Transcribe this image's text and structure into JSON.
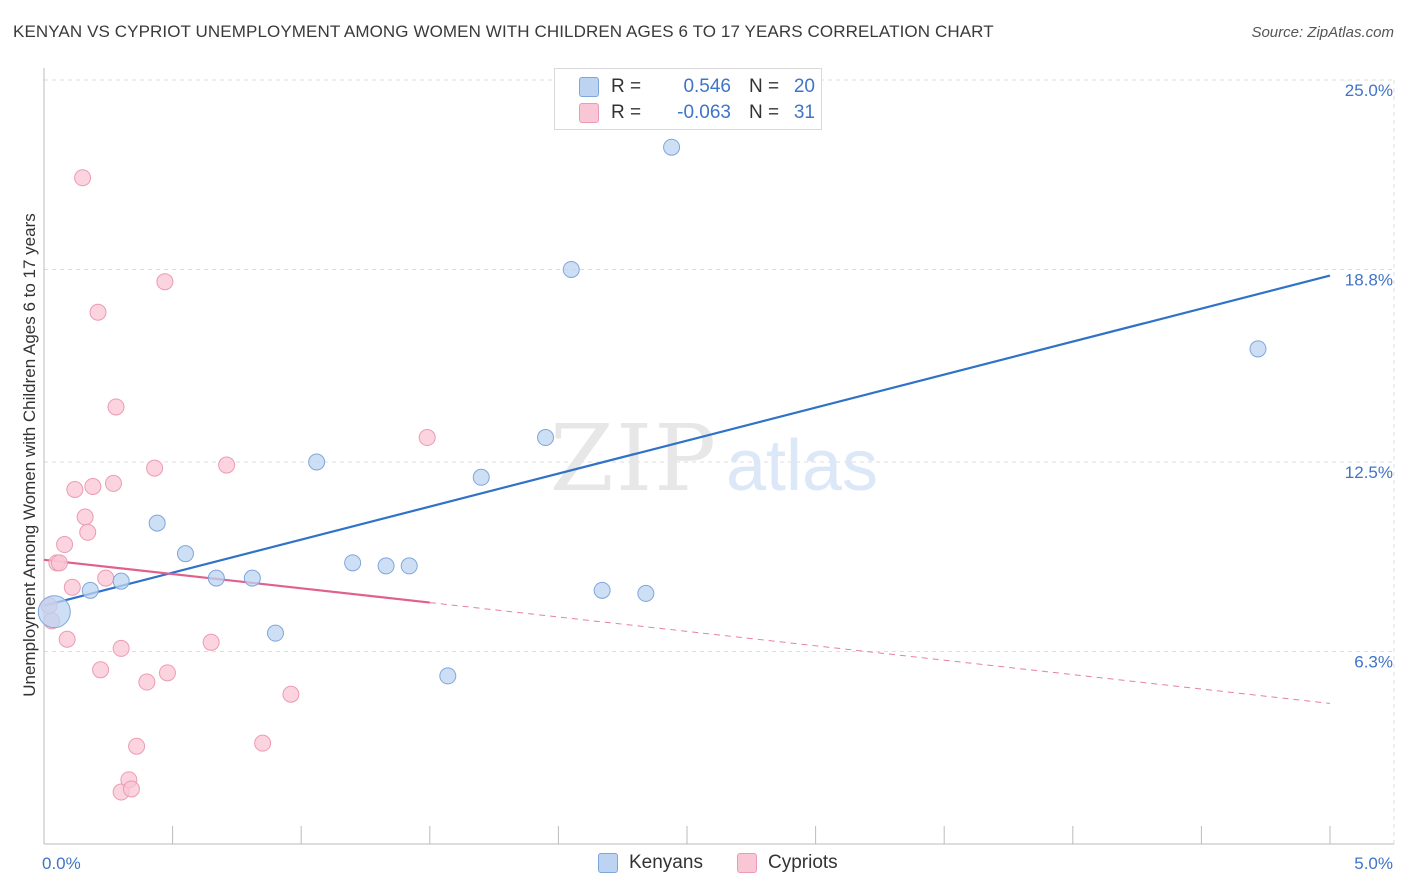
{
  "title": "KENYAN VS CYPRIOT UNEMPLOYMENT AMONG WOMEN WITH CHILDREN AGES 6 TO 17 YEARS CORRELATION CHART",
  "source": "Source: ZipAtlas.com",
  "watermark": {
    "zip": "ZIP",
    "atlas": "atlas"
  },
  "colors": {
    "kenyans_fill": "#bcd4f2",
    "kenyans_stroke": "#7ea6dc",
    "kenyans_line": "#2f72c8",
    "cypriots_fill": "#f9c6d5",
    "cypriots_stroke": "#ec9bb4",
    "cypriots_line": "#e0608f",
    "axis_label": "#3f74c8",
    "grid": "#dddddd"
  },
  "legend": {
    "rows": [
      {
        "r_label": "R =",
        "r_value": "0.546",
        "n_label": "N =",
        "n_value": "20"
      },
      {
        "r_label": "R =",
        "r_value": "-0.063",
        "n_label": "N =",
        "n_value": "31"
      }
    ]
  },
  "chart_data": {
    "type": "scatter",
    "title": "KENYAN VS CYPRIOT UNEMPLOYMENT AMONG WOMEN WITH CHILDREN AGES 6 TO 17 YEARS CORRELATION CHART",
    "xlabel": "",
    "ylabel": "Unemployment Among Women with Children Ages 6 to 17 years",
    "xlim": [
      0,
      5
    ],
    "ylim": [
      0,
      25
    ],
    "x_tick_labels": [
      "0.0%",
      "5.0%"
    ],
    "y_ticks": [
      6.3,
      12.5,
      18.8,
      25.0
    ],
    "y_tick_labels": [
      "6.3%",
      "12.5%",
      "18.8%",
      "25.0%"
    ],
    "grid": true,
    "legend_position": "bottom",
    "series": [
      {
        "name": "Kenyans",
        "points": [
          {
            "x": 0.04,
            "y": 7.6,
            "big": true
          },
          {
            "x": 0.18,
            "y": 8.3
          },
          {
            "x": 0.3,
            "y": 8.6
          },
          {
            "x": 0.44,
            "y": 10.5
          },
          {
            "x": 0.55,
            "y": 9.5
          },
          {
            "x": 0.67,
            "y": 8.7
          },
          {
            "x": 0.81,
            "y": 8.7
          },
          {
            "x": 0.9,
            "y": 6.9
          },
          {
            "x": 1.06,
            "y": 12.5
          },
          {
            "x": 1.2,
            "y": 9.2
          },
          {
            "x": 1.33,
            "y": 9.1
          },
          {
            "x": 1.42,
            "y": 9.1
          },
          {
            "x": 1.57,
            "y": 5.5
          },
          {
            "x": 1.7,
            "y": 12.0
          },
          {
            "x": 1.95,
            "y": 13.3
          },
          {
            "x": 2.05,
            "y": 18.8
          },
          {
            "x": 2.17,
            "y": 8.3
          },
          {
            "x": 2.34,
            "y": 8.2
          },
          {
            "x": 2.44,
            "y": 22.8
          },
          {
            "x": 4.72,
            "y": 16.2
          }
        ],
        "trend": {
          "x": [
            0,
            5
          ],
          "y": [
            7.8,
            18.6
          ]
        }
      },
      {
        "name": "Cypriots",
        "points": [
          {
            "x": 0.02,
            "y": 7.8
          },
          {
            "x": 0.03,
            "y": 7.3
          },
          {
            "x": 0.05,
            "y": 9.2
          },
          {
            "x": 0.06,
            "y": 9.2
          },
          {
            "x": 0.08,
            "y": 9.8
          },
          {
            "x": 0.09,
            "y": 6.7
          },
          {
            "x": 0.11,
            "y": 8.4
          },
          {
            "x": 0.12,
            "y": 11.6
          },
          {
            "x": 0.15,
            "y": 21.8
          },
          {
            "x": 0.16,
            "y": 10.7
          },
          {
            "x": 0.17,
            "y": 10.2
          },
          {
            "x": 0.19,
            "y": 11.7
          },
          {
            "x": 0.21,
            "y": 17.4
          },
          {
            "x": 0.22,
            "y": 5.7
          },
          {
            "x": 0.24,
            "y": 8.7
          },
          {
            "x": 0.27,
            "y": 11.8
          },
          {
            "x": 0.28,
            "y": 14.3
          },
          {
            "x": 0.3,
            "y": 6.4
          },
          {
            "x": 0.3,
            "y": 1.7
          },
          {
            "x": 0.33,
            "y": 2.1
          },
          {
            "x": 0.34,
            "y": 1.8
          },
          {
            "x": 0.36,
            "y": 3.2
          },
          {
            "x": 0.4,
            "y": 5.3
          },
          {
            "x": 0.43,
            "y": 12.3
          },
          {
            "x": 0.48,
            "y": 5.6
          },
          {
            "x": 0.47,
            "y": 18.4
          },
          {
            "x": 0.65,
            "y": 6.6
          },
          {
            "x": 0.71,
            "y": 12.4
          },
          {
            "x": 0.85,
            "y": 3.3
          },
          {
            "x": 0.96,
            "y": 4.9
          },
          {
            "x": 1.49,
            "y": 13.3
          }
        ],
        "trend": {
          "x": [
            0,
            1.5
          ],
          "y": [
            9.3,
            7.9
          ]
        },
        "trend_extension": {
          "x": [
            1.5,
            5
          ],
          "y": [
            7.9,
            4.6
          ]
        }
      }
    ]
  },
  "bottom_legend": {
    "kenyans": "Kenyans",
    "cypriots": "Cypriots"
  }
}
